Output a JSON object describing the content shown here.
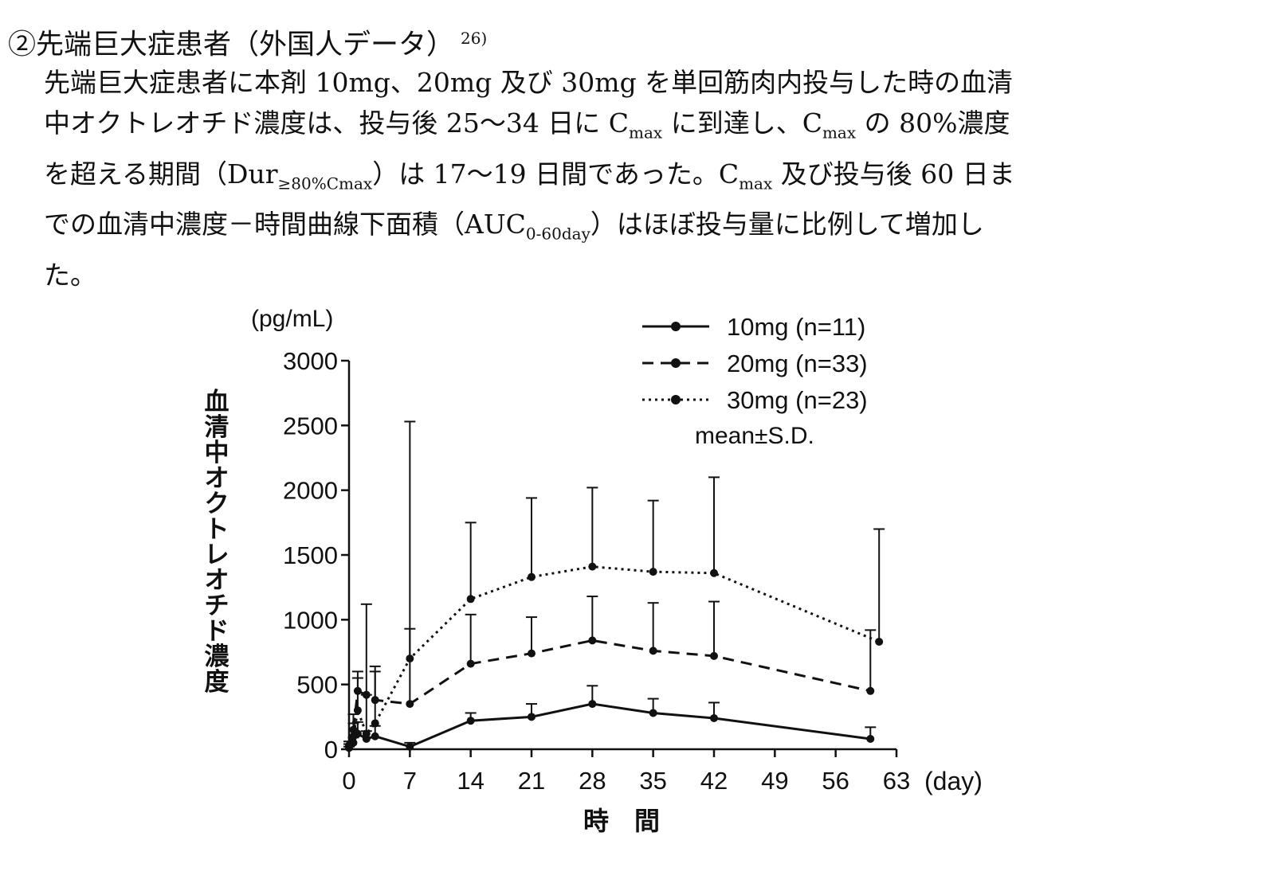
{
  "heading": {
    "text": "②先端巨大症患者（外国人データ）",
    "ref": "26)"
  },
  "paragraph": {
    "line1": "先端巨大症患者に本剤 10mg、20mg 及び 30mg を単回筋肉内投与した時の血清",
    "line2_a": "中オクトレオチド濃度は、投与後 25～34 日に C",
    "line2_sub": "max",
    "line2_b": " に到達し、C",
    "line2_sub2": "max",
    "line2_c": " の 80%濃度",
    "line3_a": "を超える期間（Dur",
    "line3_sub": "≥80%Cmax",
    "line3_b": "）は 17～19 日間であった。C",
    "line3_sub2": "max",
    "line3_c": " 及び投与後 60 日ま",
    "line4_a": "での血清中濃度－時間曲線下面積（AUC",
    "line4_sub": "0-60day",
    "line4_b": "）はほぼ投与量に比例して増加し",
    "line5": "た。"
  },
  "chart_data": {
    "type": "line",
    "y_unit": "(pg/mL)",
    "ylabel": "血清中オクトレオチド濃度",
    "xlabel": "時　間",
    "x_unit": "(day)",
    "xlim": [
      0,
      63
    ],
    "ylim": [
      0,
      3000
    ],
    "xticks": [
      0,
      7,
      14,
      21,
      28,
      35,
      42,
      49,
      56,
      63
    ],
    "yticks": [
      0,
      500,
      1000,
      1500,
      2000,
      2500,
      3000
    ],
    "legend_note": "mean±S.D.",
    "legend_position": "top-right",
    "series": [
      {
        "name": "10mg (n=11)",
        "style": "solid",
        "color": "#111111",
        "x": [
          0,
          0.5,
          1,
          2,
          3,
          7,
          14,
          21,
          28,
          35,
          42,
          60
        ],
        "y": [
          10,
          50,
          120,
          80,
          100,
          20,
          220,
          250,
          350,
          280,
          240,
          80
        ],
        "sd": [
          10,
          40,
          90,
          60,
          80,
          30,
          60,
          100,
          140,
          110,
          120,
          90
        ]
      },
      {
        "name": "20mg (n=33)",
        "style": "dashed",
        "color": "#111111",
        "x": [
          0,
          0.5,
          1,
          2,
          3,
          7,
          14,
          21,
          28,
          35,
          42,
          60
        ],
        "y": [
          20,
          150,
          450,
          420,
          380,
          350,
          660,
          740,
          840,
          760,
          720,
          450
        ],
        "sd": [
          20,
          120,
          150,
          700,
          260,
          580,
          380,
          280,
          340,
          370,
          420,
          470
        ]
      },
      {
        "name": "30mg (n=23)",
        "style": "dotted",
        "color": "#111111",
        "x": [
          0,
          0.5,
          1,
          2,
          3,
          7,
          14,
          21,
          28,
          35,
          42,
          61
        ],
        "y": [
          30,
          100,
          300,
          120,
          200,
          700,
          1160,
          1330,
          1410,
          1370,
          1360,
          830
        ],
        "sd": [
          30,
          100,
          250,
          300,
          400,
          1830,
          590,
          610,
          610,
          550,
          740,
          870
        ]
      }
    ]
  }
}
